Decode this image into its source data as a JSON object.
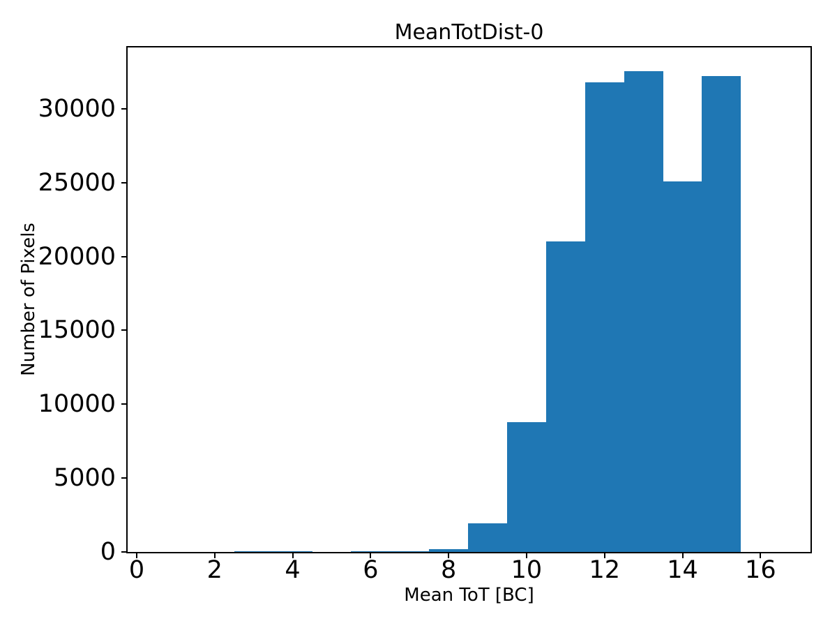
{
  "figure": {
    "title": "MeanTotDist-0",
    "x_axis_label": "Mean ToT [BC]",
    "y_axis_label": "Number of Pixels"
  },
  "chart_data": {
    "type": "bar",
    "subtype": "histogram",
    "title": "MeanTotDist-0",
    "xlabel": "Mean ToT [BC]",
    "ylabel": "Number of Pixels",
    "bar_color": "#1f77b4",
    "background_color": "#ffffff",
    "text_color": "#000000",
    "bin_width": 1,
    "bin_left_edges": [
      2.5,
      3.5,
      4.5,
      5.5,
      6.5,
      7.5,
      8.5,
      9.5,
      10.5,
      11.5,
      12.5,
      13.5,
      14.5
    ],
    "counts": [
      50,
      50,
      0,
      50,
      50,
      210,
      1950,
      8800,
      21000,
      31800,
      32550,
      25100,
      32200
    ],
    "x_ticks": [
      0,
      2,
      4,
      6,
      8,
      10,
      12,
      14,
      16
    ],
    "y_ticks": [
      0,
      5000,
      10000,
      15000,
      20000,
      25000,
      30000
    ],
    "xlim": [
      -0.25,
      17.3
    ],
    "ylim": [
      0,
      34200
    ],
    "grid": false,
    "legend": false
  }
}
